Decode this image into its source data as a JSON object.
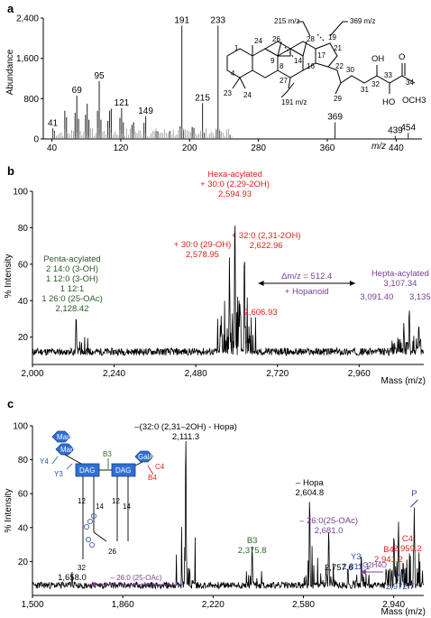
{
  "chart_data": [
    {
      "panel": "a",
      "type": "bar",
      "ylabel": "Abundance",
      "xlabel": "m/z",
      "xlim": [
        30,
        470
      ],
      "ylim": [
        0,
        2400
      ],
      "xticks": [
        40,
        120,
        200,
        280,
        360,
        440
      ],
      "yticks": [
        0,
        800,
        1600,
        2400
      ],
      "ytick_labels": [
        "0",
        "800",
        "1,600",
        "2,400"
      ],
      "peaks": [
        {
          "x": 41,
          "y": 210,
          "label": "41"
        },
        {
          "x": 43,
          "y": 160
        },
        {
          "x": 55,
          "y": 560
        },
        {
          "x": 57,
          "y": 430
        },
        {
          "x": 67,
          "y": 520
        },
        {
          "x": 69,
          "y": 860,
          "label": "69"
        },
        {
          "x": 71,
          "y": 400
        },
        {
          "x": 79,
          "y": 480
        },
        {
          "x": 81,
          "y": 700
        },
        {
          "x": 83,
          "y": 380
        },
        {
          "x": 93,
          "y": 560
        },
        {
          "x": 95,
          "y": 1150,
          "label": "95"
        },
        {
          "x": 97,
          "y": 380
        },
        {
          "x": 105,
          "y": 360
        },
        {
          "x": 107,
          "y": 560
        },
        {
          "x": 109,
          "y": 600
        },
        {
          "x": 119,
          "y": 420
        },
        {
          "x": 121,
          "y": 610,
          "label": "121"
        },
        {
          "x": 123,
          "y": 330
        },
        {
          "x": 133,
          "y": 280
        },
        {
          "x": 135,
          "y": 330
        },
        {
          "x": 147,
          "y": 320
        },
        {
          "x": 149,
          "y": 450,
          "label": "149"
        },
        {
          "x": 161,
          "y": 160
        },
        {
          "x": 163,
          "y": 150
        },
        {
          "x": 177,
          "y": 160
        },
        {
          "x": 189,
          "y": 250
        },
        {
          "x": 191,
          "y": 2250,
          "label": "191"
        },
        {
          "x": 193,
          "y": 170
        },
        {
          "x": 203,
          "y": 240
        },
        {
          "x": 205,
          "y": 220
        },
        {
          "x": 215,
          "y": 710,
          "label": "215"
        },
        {
          "x": 217,
          "y": 120
        },
        {
          "x": 231,
          "y": 180
        },
        {
          "x": 233,
          "y": 2250,
          "label": "233"
        },
        {
          "x": 235,
          "y": 160
        },
        {
          "x": 247,
          "y": 80
        },
        {
          "x": 369,
          "y": 330,
          "label": "369"
        },
        {
          "x": 439,
          "y": 60,
          "label": "439"
        },
        {
          "x": 454,
          "y": 120,
          "label": "454"
        }
      ],
      "structure": {
        "fragment_labels": [
          "215 m/z",
          "369 m/z",
          "191 m/z"
        ],
        "ring_numbers": [
          "1",
          "24",
          "26",
          "9",
          "4",
          "8",
          "14",
          "16",
          "17",
          "19",
          "21",
          "22",
          "28",
          "27",
          "23",
          "24",
          "29",
          "30",
          "31",
          "32",
          "33",
          "34"
        ],
        "groups": [
          "OH",
          "O",
          "HO",
          "OCH3"
        ]
      }
    },
    {
      "panel": "b",
      "type": "line",
      "ylabel": "% Intensity",
      "xlabel": "Mass (m/z)",
      "xlim": [
        2000,
        3150
      ],
      "ylim": [
        5,
        100
      ],
      "xticks": [
        2000,
        2240,
        2480,
        2720,
        2960
      ],
      "xtick_labels": [
        "2,000",
        "2,240",
        "2,480",
        "2,720",
        "2,960"
      ],
      "yticks": [
        20,
        40,
        60,
        80,
        100
      ],
      "baseline": 10,
      "peaks": [
        {
          "x": 2128.42,
          "y": 33
        },
        {
          "x": 2578.95,
          "y": 64
        },
        {
          "x": 2594.93,
          "y": 89
        },
        {
          "x": 2606.93,
          "y": 40
        },
        {
          "x": 2622.96,
          "y": 69
        },
        {
          "x": 3091.4,
          "y": 28
        },
        {
          "x": 3107.34,
          "y": 37
        },
        {
          "x": 3135.36,
          "y": 28
        }
      ],
      "annotations": [
        {
          "key": "penta",
          "x": 2128.42,
          "lines": [
            "Penta-acylated",
            "2 14:0 (3-OH)",
            "1 12:0 (3-OH)",
            "1 12:1",
            "1 26:0 (25-OAc)",
            "2,128.42"
          ],
          "color": "#2a5a2a"
        },
        {
          "key": "hexa",
          "x": 2594.93,
          "lines": [
            "Hexa-acylated",
            "+ 30:0 (2,29-2OH)",
            "2,594.93"
          ],
          "color": "#e0201c"
        },
        {
          "key": "c32",
          "x": 2622.96,
          "lines": [
            "+ 32:0 (2,31-2OH)",
            "2,622.96"
          ],
          "color": "#e0201c"
        },
        {
          "key": "c30",
          "x": 2578.95,
          "lines": [
            "+ 30:0 (29-OH)",
            "2,578.95"
          ],
          "color": "#e0201c"
        },
        {
          "key": "p2606",
          "x": 2606.93,
          "lines": [
            "2,606.93"
          ],
          "color": "#e0201c"
        },
        {
          "key": "hepta",
          "x": 3107.34,
          "lines": [
            "Hepta-acylated",
            "3,107.34"
          ],
          "color": "#7b3f98"
        },
        {
          "key": "p3091",
          "x": 3091.4,
          "lines": [
            "3,091.40"
          ],
          "color": "#7b3f98"
        },
        {
          "key": "p3135",
          "x": 3135.36,
          "lines": [
            "3,135.36"
          ],
          "color": "#7b3f98"
        }
      ],
      "delta": {
        "text": "Δm/z = 512.4",
        "sub": "+ Hopanoid",
        "from": 2594.93,
        "to": 3107.34
      }
    },
    {
      "panel": "c",
      "type": "line",
      "ylabel": "% Intensity",
      "xlabel": "Mass (m/z)",
      "xlim": [
        1500,
        3060
      ],
      "ylim": [
        0,
        100
      ],
      "xticks": [
        1500,
        1860,
        2220,
        2580,
        2940
      ],
      "xtick_labels": [
        "1,500",
        "1,860",
        "2,220",
        "2,580",
        "2,940"
      ],
      "yticks": [
        20,
        40,
        60,
        80,
        100
      ],
      "baseline": 4,
      "peaks": [
        {
          "x": 1658.0,
          "y": 14
        },
        {
          "x": 2111.3,
          "y": 97
        },
        {
          "x": 2375.8,
          "y": 30
        },
        {
          "x": 2604.8,
          "y": 60
        },
        {
          "x": 2681.0,
          "y": 40
        },
        {
          "x": 2757.6,
          "y": 17
        },
        {
          "x": 2811.1,
          "y": 25
        },
        {
          "x": 2941.2,
          "y": 38
        },
        {
          "x": 2959.2,
          "y": 44
        },
        {
          "x": 2972.7,
          "y": 16
        },
        {
          "x": 3022.0,
          "y": 52
        }
      ],
      "annotations": [
        {
          "key": "p2111",
          "x": 2111.3,
          "lines": [
            "–(32:0 (2,31–2OH) - Hopa)",
            "2,111.3"
          ],
          "color": "#000000"
        },
        {
          "key": "p2604",
          "x": 2604.8,
          "lines": [
            "– Hopa",
            "2,604.8"
          ],
          "color": "#000000"
        },
        {
          "key": "p2375",
          "x": 2375.8,
          "lines": [
            "B3",
            "2,375.8"
          ],
          "color": "#2a6a2a"
        },
        {
          "key": "p2681",
          "x": 2681.0,
          "lines": [
            "– 26:0(25-OAc)",
            "2,681.0"
          ],
          "color": "#7b3f98"
        },
        {
          "key": "p2811",
          "x": 2811.1,
          "lines": [
            "Y3",
            "2,811.1"
          ],
          "color": "#3050a0"
        },
        {
          "key": "p2757",
          "x": 2757.6,
          "lines": [
            "2,757.6"
          ],
          "color": "#000000"
        },
        {
          "key": "p2941",
          "x": 2941.2,
          "lines": [
            "B4",
            "2,941.2"
          ],
          "color": "#e0201c"
        },
        {
          "key": "p2959",
          "x": 2959.2,
          "lines": [
            "C4",
            "2,959.2"
          ],
          "color": "#e0201c"
        },
        {
          "key": "p2972",
          "x": 2972.7,
          "lines": [
            "Y4",
            "2,972.7"
          ],
          "color": "#3050a0"
        },
        {
          "key": "pP",
          "x": 3022.0,
          "lines": [
            "P"
          ],
          "color": "#3050a0"
        },
        {
          "key": "p1658",
          "x": 1658.0,
          "lines": [
            "1,658.0"
          ],
          "color": "#000000"
        }
      ],
      "arrows": [
        {
          "label": "– 26:0 (25-OAc)",
          "from": 2111.3,
          "to": 1658.0,
          "color": "#7b3f98"
        },
        {
          "label": "– C2H4O",
          "from": 2811.1,
          "to": 2757.6,
          "color": "#7b3f98"
        }
      ],
      "schematic": {
        "sugars": [
          "Man",
          "Man",
          "GalA"
        ],
        "cores": [
          "DAG",
          "DAG"
        ],
        "fragments": [
          "Y4",
          "Y3",
          "B3",
          "C4",
          "B4"
        ],
        "chains": [
          "12",
          "14",
          "12",
          "14",
          "26",
          "32"
        ]
      }
    }
  ],
  "colors": {
    "red": "#e0201c",
    "purple": "#7b3f98",
    "green": "#2a6a2a",
    "blue": "#3050a0",
    "dag_blue": "#2f6fd6"
  }
}
